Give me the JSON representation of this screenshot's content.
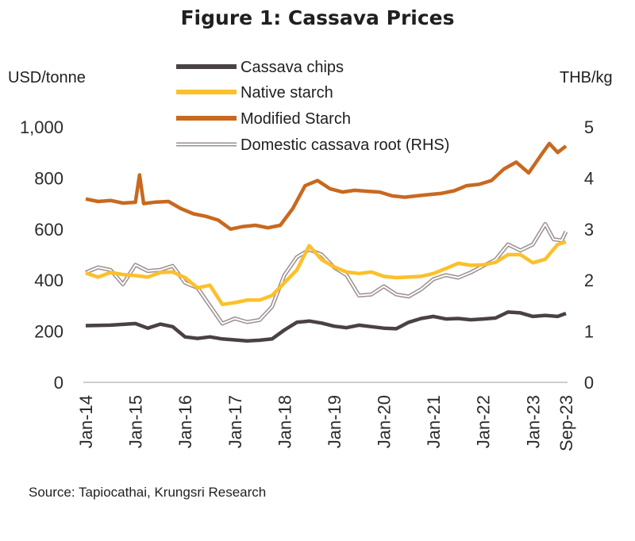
{
  "chart_data": {
    "type": "line",
    "title": "Figure 1: Cassava Prices",
    "left_unit": "USD/tonne",
    "right_unit": "THB/kg",
    "source": "Source: Tapiocathai, Krungsri Research",
    "x_ticks": [
      "Jan-14",
      "Jan-15",
      "Jan-16",
      "Jan-17",
      "Jan-18",
      "Jan-19",
      "Jan-20",
      "Jan-21",
      "Jan-22",
      "Jan-23",
      "Sep-23"
    ],
    "x_range": [
      "2014-01",
      "2023-09"
    ],
    "ylim_left": [
      0,
      1000
    ],
    "ylim_right": [
      0,
      5
    ],
    "y_ticks_left": [
      "0",
      "200",
      "400",
      "600",
      "800",
      "1,000"
    ],
    "y_ticks_right": [
      "0",
      "1",
      "2",
      "3",
      "4",
      "5"
    ],
    "grid": false,
    "legend_position": "top",
    "series": [
      {
        "name": "Cassava chips",
        "axis": "left",
        "color": "#4a4142",
        "style": "solid",
        "points": [
          [
            "2014-01",
            222
          ],
          [
            "2014-07",
            224
          ],
          [
            "2015-01",
            230
          ],
          [
            "2015-04",
            212
          ],
          [
            "2015-07",
            228
          ],
          [
            "2015-10",
            218
          ],
          [
            "2016-01",
            178
          ],
          [
            "2016-04",
            172
          ],
          [
            "2016-07",
            178
          ],
          [
            "2016-10",
            170
          ],
          [
            "2017-01",
            166
          ],
          [
            "2017-04",
            162
          ],
          [
            "2017-07",
            165
          ],
          [
            "2017-10",
            170
          ],
          [
            "2018-01",
            205
          ],
          [
            "2018-04",
            235
          ],
          [
            "2018-07",
            240
          ],
          [
            "2018-10",
            232
          ],
          [
            "2019-01",
            220
          ],
          [
            "2019-04",
            214
          ],
          [
            "2019-07",
            224
          ],
          [
            "2019-10",
            218
          ],
          [
            "2020-01",
            212
          ],
          [
            "2020-04",
            210
          ],
          [
            "2020-07",
            235
          ],
          [
            "2020-10",
            250
          ],
          [
            "2021-01",
            258
          ],
          [
            "2021-04",
            248
          ],
          [
            "2021-07",
            250
          ],
          [
            "2021-10",
            245
          ],
          [
            "2022-01",
            248
          ],
          [
            "2022-04",
            252
          ],
          [
            "2022-07",
            275
          ],
          [
            "2022-10",
            272
          ],
          [
            "2023-01",
            258
          ],
          [
            "2023-04",
            262
          ],
          [
            "2023-07",
            258
          ],
          [
            "2023-09",
            270
          ]
        ]
      },
      {
        "name": "Native starch",
        "axis": "left",
        "color": "#fcc02a",
        "style": "solid",
        "points": [
          [
            "2014-01",
            428
          ],
          [
            "2014-04",
            412
          ],
          [
            "2014-07",
            430
          ],
          [
            "2014-10",
            422
          ],
          [
            "2015-01",
            418
          ],
          [
            "2015-04",
            412
          ],
          [
            "2015-07",
            430
          ],
          [
            "2015-10",
            432
          ],
          [
            "2016-01",
            410
          ],
          [
            "2016-04",
            370
          ],
          [
            "2016-07",
            380
          ],
          [
            "2016-10",
            305
          ],
          [
            "2017-01",
            312
          ],
          [
            "2017-04",
            322
          ],
          [
            "2017-07",
            322
          ],
          [
            "2017-10",
            340
          ],
          [
            "2018-01",
            390
          ],
          [
            "2018-04",
            440
          ],
          [
            "2018-07",
            535
          ],
          [
            "2018-10",
            480
          ],
          [
            "2019-01",
            452
          ],
          [
            "2019-04",
            432
          ],
          [
            "2019-07",
            426
          ],
          [
            "2019-10",
            432
          ],
          [
            "2020-01",
            415
          ],
          [
            "2020-04",
            410
          ],
          [
            "2020-07",
            412
          ],
          [
            "2020-10",
            415
          ],
          [
            "2021-01",
            426
          ],
          [
            "2021-04",
            446
          ],
          [
            "2021-07",
            466
          ],
          [
            "2021-10",
            458
          ],
          [
            "2022-01",
            460
          ],
          [
            "2022-04",
            470
          ],
          [
            "2022-07",
            500
          ],
          [
            "2022-10",
            500
          ],
          [
            "2023-01",
            468
          ],
          [
            "2023-04",
            482
          ],
          [
            "2023-07",
            540
          ],
          [
            "2023-09",
            550
          ]
        ]
      },
      {
        "name": "Modified Starch",
        "axis": "left",
        "color": "#c8691f",
        "style": "solid",
        "points": [
          [
            "2014-01",
            718
          ],
          [
            "2014-04",
            708
          ],
          [
            "2014-07",
            712
          ],
          [
            "2014-10",
            702
          ],
          [
            "2015-01",
            705
          ],
          [
            "2015-02",
            812
          ],
          [
            "2015-03",
            700
          ],
          [
            "2015-06",
            706
          ],
          [
            "2015-09",
            708
          ],
          [
            "2015-12",
            680
          ],
          [
            "2016-03",
            660
          ],
          [
            "2016-06",
            650
          ],
          [
            "2016-09",
            635
          ],
          [
            "2016-12",
            600
          ],
          [
            "2017-03",
            610
          ],
          [
            "2017-06",
            615
          ],
          [
            "2017-09",
            605
          ],
          [
            "2017-12",
            615
          ],
          [
            "2018-03",
            680
          ],
          [
            "2018-06",
            770
          ],
          [
            "2018-09",
            790
          ],
          [
            "2018-12",
            758
          ],
          [
            "2019-03",
            745
          ],
          [
            "2019-06",
            752
          ],
          [
            "2019-09",
            748
          ],
          [
            "2019-12",
            745
          ],
          [
            "2020-03",
            730
          ],
          [
            "2020-06",
            725
          ],
          [
            "2020-09",
            730
          ],
          [
            "2020-12",
            735
          ],
          [
            "2021-03",
            740
          ],
          [
            "2021-06",
            750
          ],
          [
            "2021-09",
            770
          ],
          [
            "2021-12",
            775
          ],
          [
            "2022-03",
            790
          ],
          [
            "2022-06",
            835
          ],
          [
            "2022-09",
            862
          ],
          [
            "2022-12",
            820
          ],
          [
            "2023-03",
            890
          ],
          [
            "2023-05",
            935
          ],
          [
            "2023-07",
            900
          ],
          [
            "2023-09",
            925
          ]
        ]
      },
      {
        "name": "Domestic cassava root (RHS)",
        "axis": "right",
        "color": "#ffffff",
        "outline_color": "#9c8f8f",
        "style": "double",
        "points": [
          [
            "2014-01",
            2.15
          ],
          [
            "2014-04",
            2.25
          ],
          [
            "2014-07",
            2.2
          ],
          [
            "2014-10",
            1.92
          ],
          [
            "2015-01",
            2.3
          ],
          [
            "2015-04",
            2.18
          ],
          [
            "2015-07",
            2.2
          ],
          [
            "2015-10",
            2.28
          ],
          [
            "2016-01",
            1.95
          ],
          [
            "2016-04",
            1.85
          ],
          [
            "2016-07",
            1.5
          ],
          [
            "2016-10",
            1.15
          ],
          [
            "2017-01",
            1.25
          ],
          [
            "2017-04",
            1.18
          ],
          [
            "2017-07",
            1.22
          ],
          [
            "2017-10",
            1.48
          ],
          [
            "2018-01",
            2.1
          ],
          [
            "2018-04",
            2.45
          ],
          [
            "2018-07",
            2.6
          ],
          [
            "2018-10",
            2.5
          ],
          [
            "2019-01",
            2.25
          ],
          [
            "2019-04",
            2.1
          ],
          [
            "2019-07",
            1.7
          ],
          [
            "2019-10",
            1.72
          ],
          [
            "2020-01",
            1.88
          ],
          [
            "2020-04",
            1.72
          ],
          [
            "2020-07",
            1.68
          ],
          [
            "2020-10",
            1.82
          ],
          [
            "2021-01",
            2.02
          ],
          [
            "2021-04",
            2.1
          ],
          [
            "2021-07",
            2.05
          ],
          [
            "2021-10",
            2.15
          ],
          [
            "2022-01",
            2.28
          ],
          [
            "2022-04",
            2.4
          ],
          [
            "2022-07",
            2.7
          ],
          [
            "2022-10",
            2.58
          ],
          [
            "2023-01",
            2.7
          ],
          [
            "2023-04",
            3.1
          ],
          [
            "2023-06",
            2.8
          ],
          [
            "2023-08",
            2.78
          ],
          [
            "2023-09",
            2.95
          ]
        ]
      }
    ]
  }
}
